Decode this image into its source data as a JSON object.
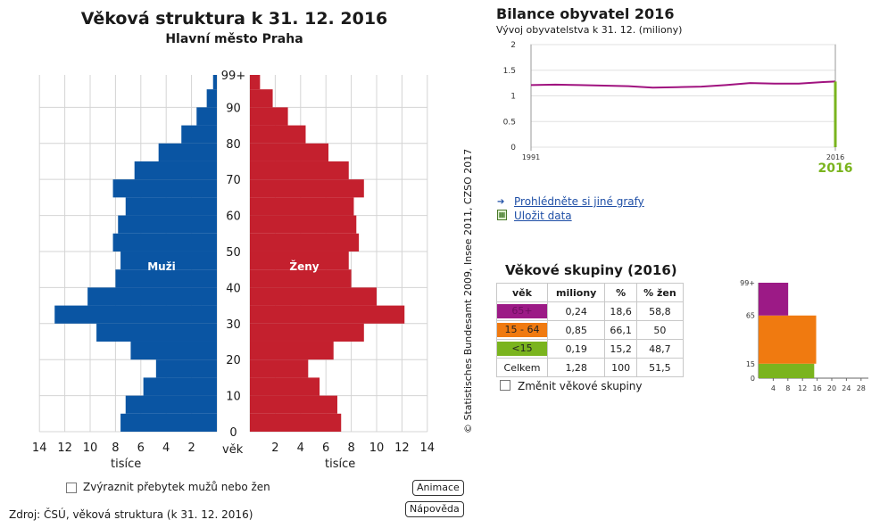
{
  "title": "Věková struktura k 31. 12. 2016",
  "subtitle": "Hlavní město Praha",
  "pyramid": {
    "men_label": "Muži",
    "women_label": "Ženy",
    "age_axis_label": "věk",
    "x_unit_left": "tisíce",
    "x_unit_right": "tisíce",
    "left_ticks": [
      "14",
      "12",
      "10",
      "8",
      "6",
      "4",
      "2"
    ],
    "right_ticks": [
      "2",
      "4",
      "6",
      "8",
      "10",
      "12",
      "14"
    ],
    "age_ticks": [
      "0",
      "10",
      "20",
      "30",
      "40",
      "50",
      "60",
      "70",
      "80",
      "90",
      "99+"
    ],
    "men_color": "#0a55a3",
    "women_color": "#c4202e",
    "copyright": "© Statistisches Bundesamt 2009, Insee 2011, CZSO 2017"
  },
  "chart_data": [
    {
      "type": "bar",
      "orientation": "horizontal-pyramid",
      "title": "Věková struktura k 31. 12. 2016",
      "subtitle": "Hlavní město Praha",
      "ylabel": "věk",
      "xlabel": "tisíce",
      "xlim": [
        0,
        14
      ],
      "series": [
        {
          "name": "Muži",
          "age_from": 0,
          "age_step": 5,
          "values": [
            7.6,
            7.2,
            5.8,
            4.8,
            6.8,
            9.5,
            12.8,
            10.2,
            8.0,
            7.6,
            8.2,
            7.8,
            7.2,
            8.2,
            6.5,
            4.6,
            2.8,
            1.6,
            0.8,
            0.3
          ]
        },
        {
          "name": "Ženy",
          "age_from": 0,
          "age_step": 5,
          "values": [
            7.2,
            6.9,
            5.5,
            4.6,
            6.6,
            9.0,
            12.2,
            10.0,
            8.0,
            7.8,
            8.6,
            8.4,
            8.2,
            9.0,
            7.8,
            6.2,
            4.4,
            3.0,
            1.8,
            0.8
          ]
        }
      ]
    },
    {
      "type": "line",
      "title": "Bilance obyvatel 2016",
      "subtitle": "Vývoj obyvatelstva k 31. 12. (miliony)",
      "x": [
        1991,
        1993,
        1995,
        1997,
        1999,
        2001,
        2003,
        2005,
        2007,
        2009,
        2011,
        2013,
        2015,
        2016
      ],
      "series": [
        {
          "values": [
            1.21,
            1.22,
            1.21,
            1.2,
            1.19,
            1.16,
            1.17,
            1.18,
            1.21,
            1.25,
            1.24,
            1.24,
            1.27,
            1.28
          ]
        }
      ],
      "ylim": [
        0,
        2
      ],
      "yticks": [
        "0",
        "0.5",
        "1",
        "1.5",
        "2"
      ],
      "xticks": [
        "1991",
        "2016"
      ],
      "highlight_year": "2016",
      "grid": true
    },
    {
      "type": "bar",
      "orientation": "horizontal-stacked-age-groups",
      "categories": [
        "<15",
        "15 - 64",
        "65+"
      ],
      "values": [
        15.2,
        66.1,
        18.6
      ],
      "yticks": [
        "0",
        "15",
        "65",
        "99+"
      ],
      "xticks": [
        "4",
        "8",
        "12",
        "16",
        "20",
        "24",
        "28"
      ]
    }
  ],
  "bilance": {
    "title": "Bilance obyvatel 2016",
    "subtitle": "Vývoj obyvatelstva k 31. 12. (miliony)",
    "year_label": "2016",
    "line_color": "#a0127f",
    "highlight_color": "#7ab41e"
  },
  "links": {
    "other_charts": "Prohlédněte si jiné grafy",
    "save_data": "Uložit data"
  },
  "age_groups": {
    "title": "Věkové skupiny (2016)",
    "headers": [
      "věk",
      "miliony",
      "%",
      "% žen"
    ],
    "rows": [
      {
        "group": "65+",
        "millions": "0,24",
        "pct": "18,6",
        "pct_women": "58,8",
        "color": "#9c1a86"
      },
      {
        "group": "15 - 64",
        "millions": "0,85",
        "pct": "66,1",
        "pct_women": "50",
        "color": "#f07a10"
      },
      {
        "group": "<15",
        "millions": "0,19",
        "pct": "15,2",
        "pct_women": "48,7",
        "color": "#7ab41e"
      }
    ],
    "total": {
      "group": "Celkem",
      "millions": "1,28",
      "pct": "100",
      "pct_women": "51,5"
    },
    "change_groups_label": "Změnit věkové skupiny"
  },
  "controls": {
    "highlight_surplus_label": "Zvýraznit přebytek mužů nebo žen",
    "animation_button": "Animace",
    "help_button": "Nápověda"
  },
  "source": "Zdroj: ČSÚ, věková struktura (k 31. 12. 2016)"
}
